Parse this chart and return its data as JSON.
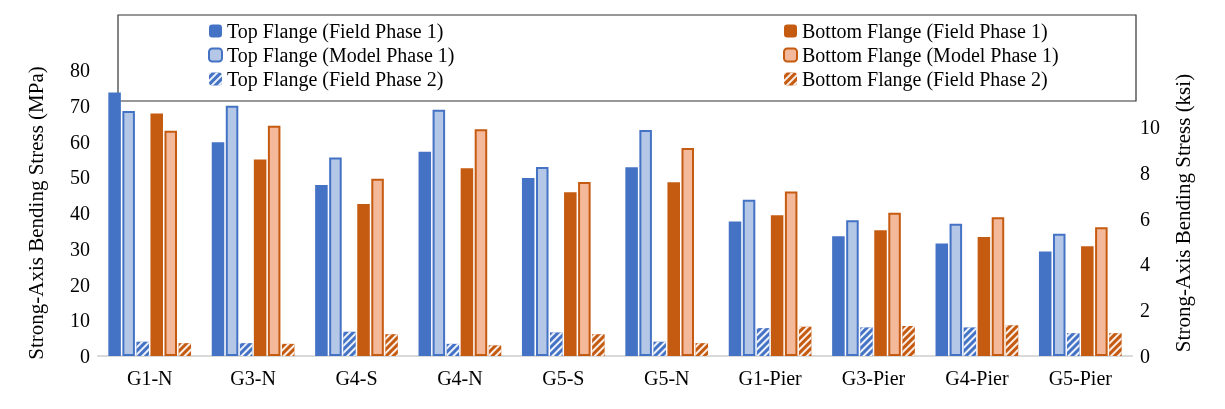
{
  "chart_data": {
    "type": "bar",
    "categories": [
      "G1-N",
      "G3-N",
      "G4-S",
      "G4-N",
      "G5-S",
      "G5-N",
      "G1-Pier",
      "G3-Pier",
      "G4-Pier",
      "G5-Pier"
    ],
    "ylabel": "Strong-Axis Bending Stress (MPa)",
    "y2label": "Strong-Axis Bending Stress (ksi)",
    "ylim": [
      0,
      80
    ],
    "yticks": [
      0,
      10,
      20,
      30,
      40,
      50,
      60,
      70,
      80
    ],
    "y2lim": [
      0,
      12.5
    ],
    "y2ticks": [
      0,
      2,
      4,
      6,
      8,
      10
    ],
    "grid": false,
    "legend": "top",
    "series": [
      {
        "name": "Top Flange (Field Phase 1)",
        "color": "#4472c4",
        "values": [
          73.7,
          59.8,
          47.8,
          57.1,
          49.8,
          52.8,
          37.6,
          33.5,
          31.5,
          29.2
        ]
      },
      {
        "name": "Top Flange (Model Phase 1)",
        "color": "#b4c7e7",
        "values": [
          68.5,
          70.0,
          55.5,
          68.9,
          52.9,
          63.2,
          43.7,
          38.0,
          37.0,
          34.2
        ]
      },
      {
        "name": "Top Flange (Field Phase 2)",
        "color": "#4472c4",
        "values": [
          4.0,
          3.6,
          6.8,
          3.4,
          6.6,
          4.0,
          7.8,
          8.0,
          8.0,
          6.4
        ]
      },
      {
        "name": "Bottom Flange (Field Phase 1)",
        "color": "#c55a11",
        "values": [
          67.8,
          55.0,
          42.5,
          52.5,
          45.8,
          48.6,
          39.4,
          35.2,
          33.3,
          30.7
        ]
      },
      {
        "name": "Bottom Flange (Model Phase 1)",
        "color": "#f4b99a",
        "values": [
          63.0,
          64.4,
          49.6,
          63.4,
          48.7,
          58.2,
          46.0,
          40.1,
          38.8,
          36.0
        ]
      },
      {
        "name": "Bottom Flange (Field Phase 2)",
        "color": "#c55a11",
        "values": [
          3.6,
          3.4,
          6.1,
          3.0,
          6.1,
          3.6,
          8.2,
          8.4,
          8.6,
          6.4
        ]
      }
    ]
  }
}
